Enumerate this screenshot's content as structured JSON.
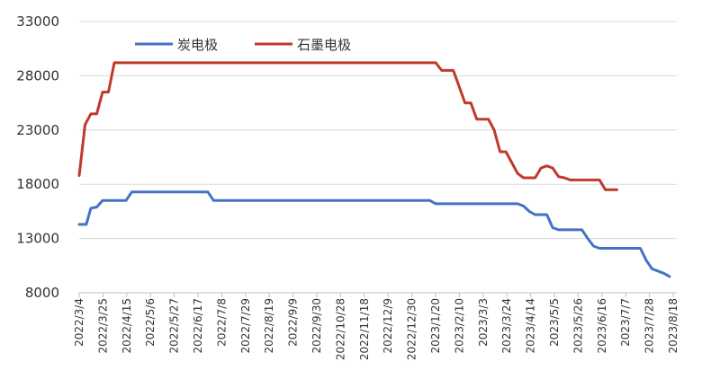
{
  "chart_data": {
    "type": "line",
    "x_tick_labels": [
      "2022/3/4",
      "2022/3/25",
      "2022/4/15",
      "2022/5/6",
      "2022/5/27",
      "2022/6/17",
      "2022/7/8",
      "2022/7/29",
      "2022/8/19",
      "2022/9/9",
      "2022/9/30",
      "2022/10/28",
      "2022/11/18",
      "2022/12/9",
      "2022/12/30",
      "2023/1/20",
      "2023/2/10",
      "2023/3/3",
      "2023/3/24",
      "2023/4/14",
      "2023/5/5",
      "2023/5/26",
      "2023/6/16",
      "2023/7/7",
      "2023/7/28",
      "2023/8/18"
    ],
    "y_ticks": [
      8000,
      13000,
      18000,
      23000,
      28000,
      33000
    ],
    "y_tick_labels": [
      "8000",
      "13000",
      "18000",
      "23000",
      "28000",
      "33000"
    ],
    "ylim": [
      8000,
      33000
    ],
    "grid": true,
    "legend_position": "top-left",
    "series": [
      {
        "name": "炭电极",
        "color": "#4472C4",
        "points": [
          [
            0,
            14300
          ],
          [
            1.2,
            14300
          ],
          [
            2,
            15800
          ],
          [
            3,
            15900
          ],
          [
            4,
            16500
          ],
          [
            5,
            16500
          ],
          [
            6,
            16500
          ],
          [
            7,
            16500
          ],
          [
            8,
            16500
          ],
          [
            9,
            17300
          ],
          [
            10,
            17300
          ],
          [
            11,
            17300
          ],
          [
            12,
            17300
          ],
          [
            13,
            17300
          ],
          [
            14,
            17300
          ],
          [
            15,
            17300
          ],
          [
            16,
            17300
          ],
          [
            17,
            17300
          ],
          [
            18,
            17300
          ],
          [
            19,
            17300
          ],
          [
            20,
            17300
          ],
          [
            21,
            17300
          ],
          [
            22,
            17300
          ],
          [
            23,
            16500
          ],
          [
            24,
            16500
          ],
          [
            25,
            16500
          ],
          [
            26,
            16500
          ],
          [
            27,
            16500
          ],
          [
            28,
            16500
          ],
          [
            29,
            16500
          ],
          [
            30,
            16500
          ],
          [
            31,
            16500
          ],
          [
            32,
            16500
          ],
          [
            33,
            16500
          ],
          [
            34,
            16500
          ],
          [
            35,
            16500
          ],
          [
            36,
            16500
          ],
          [
            37,
            16500
          ],
          [
            38,
            16500
          ],
          [
            39,
            16500
          ],
          [
            40,
            16500
          ],
          [
            41,
            16500
          ],
          [
            42,
            16500
          ],
          [
            43,
            16500
          ],
          [
            44,
            16500
          ],
          [
            45,
            16500
          ],
          [
            46,
            16500
          ],
          [
            47,
            16500
          ],
          [
            48,
            16500
          ],
          [
            49,
            16500
          ],
          [
            50,
            16500
          ],
          [
            51,
            16500
          ],
          [
            52,
            16500
          ],
          [
            53,
            16500
          ],
          [
            54,
            16500
          ],
          [
            55,
            16500
          ],
          [
            56,
            16500
          ],
          [
            57,
            16500
          ],
          [
            58,
            16500
          ],
          [
            59,
            16500
          ],
          [
            60,
            16500
          ],
          [
            61,
            16200
          ],
          [
            62,
            16200
          ],
          [
            63,
            16200
          ],
          [
            64,
            16200
          ],
          [
            65,
            16200
          ],
          [
            66,
            16200
          ],
          [
            67,
            16200
          ],
          [
            68,
            16200
          ],
          [
            69,
            16200
          ],
          [
            70,
            16200
          ],
          [
            71,
            16200
          ],
          [
            72,
            16200
          ],
          [
            73,
            16200
          ],
          [
            74,
            16200
          ],
          [
            75,
            16200
          ],
          [
            76,
            16000
          ],
          [
            77,
            15500
          ],
          [
            78,
            15200
          ],
          [
            79,
            15200
          ],
          [
            80,
            15200
          ],
          [
            81,
            14000
          ],
          [
            82,
            13800
          ],
          [
            83,
            13800
          ],
          [
            84,
            13800
          ],
          [
            85,
            13800
          ],
          [
            86,
            13800
          ],
          [
            87,
            13000
          ],
          [
            88,
            12300
          ],
          [
            89,
            12100
          ],
          [
            90,
            12100
          ],
          [
            91,
            12100
          ],
          [
            92,
            12100
          ],
          [
            93,
            12100
          ],
          [
            94,
            12100
          ],
          [
            95,
            12100
          ],
          [
            96,
            12100
          ],
          [
            97,
            11000
          ],
          [
            98,
            10200
          ],
          [
            99,
            10000
          ],
          [
            100,
            9800
          ],
          [
            101,
            9500
          ]
        ]
      },
      {
        "name": "石墨电极",
        "color": "#C0392B",
        "points": [
          [
            0,
            18800
          ],
          [
            1,
            23500
          ],
          [
            2,
            24500
          ],
          [
            3,
            24500
          ],
          [
            4,
            26500
          ],
          [
            5,
            26500
          ],
          [
            6,
            29200
          ],
          [
            7,
            29200
          ],
          [
            8,
            29200
          ],
          [
            9,
            29200
          ],
          [
            10,
            29200
          ],
          [
            11,
            29200
          ],
          [
            12,
            29200
          ],
          [
            13,
            29200
          ],
          [
            14,
            29200
          ],
          [
            15,
            29200
          ],
          [
            16,
            29200
          ],
          [
            17,
            29200
          ],
          [
            18,
            29200
          ],
          [
            19,
            29200
          ],
          [
            20,
            29200
          ],
          [
            21,
            29200
          ],
          [
            22,
            29200
          ],
          [
            23,
            29200
          ],
          [
            24,
            29200
          ],
          [
            25,
            29200
          ],
          [
            26,
            29200
          ],
          [
            27,
            29200
          ],
          [
            28,
            29200
          ],
          [
            29,
            29200
          ],
          [
            30,
            29200
          ],
          [
            31,
            29200
          ],
          [
            32,
            29200
          ],
          [
            33,
            29200
          ],
          [
            34,
            29200
          ],
          [
            35,
            29200
          ],
          [
            36,
            29200
          ],
          [
            37,
            29200
          ],
          [
            38,
            29200
          ],
          [
            39,
            29200
          ],
          [
            40,
            29200
          ],
          [
            41,
            29200
          ],
          [
            42,
            29200
          ],
          [
            43,
            29200
          ],
          [
            44,
            29200
          ],
          [
            45,
            29200
          ],
          [
            46,
            29200
          ],
          [
            47,
            29200
          ],
          [
            48,
            29200
          ],
          [
            49,
            29200
          ],
          [
            50,
            29200
          ],
          [
            51,
            29200
          ],
          [
            52,
            29200
          ],
          [
            53,
            29200
          ],
          [
            54,
            29200
          ],
          [
            55,
            29200
          ],
          [
            56,
            29200
          ],
          [
            57,
            29200
          ],
          [
            58,
            29200
          ],
          [
            59,
            29200
          ],
          [
            60,
            29200
          ],
          [
            61,
            29200
          ],
          [
            62,
            28500
          ],
          [
            63,
            28500
          ],
          [
            64,
            28500
          ],
          [
            65,
            27000
          ],
          [
            66,
            25500
          ],
          [
            67,
            25500
          ],
          [
            68,
            24000
          ],
          [
            69,
            24000
          ],
          [
            70,
            24000
          ],
          [
            71,
            23000
          ],
          [
            72,
            21000
          ],
          [
            73,
            21000
          ],
          [
            74,
            20000
          ],
          [
            75,
            19000
          ],
          [
            76,
            18600
          ],
          [
            77,
            18600
          ],
          [
            78,
            18600
          ],
          [
            79,
            19500
          ],
          [
            80,
            19700
          ],
          [
            81,
            19500
          ],
          [
            82,
            18700
          ],
          [
            83,
            18600
          ],
          [
            84,
            18400
          ],
          [
            85,
            18400
          ],
          [
            86,
            18400
          ],
          [
            87,
            18400
          ],
          [
            88,
            18400
          ],
          [
            89,
            18400
          ],
          [
            90,
            17500
          ],
          [
            91,
            17500
          ],
          [
            92,
            17500
          ]
        ]
      }
    ]
  }
}
